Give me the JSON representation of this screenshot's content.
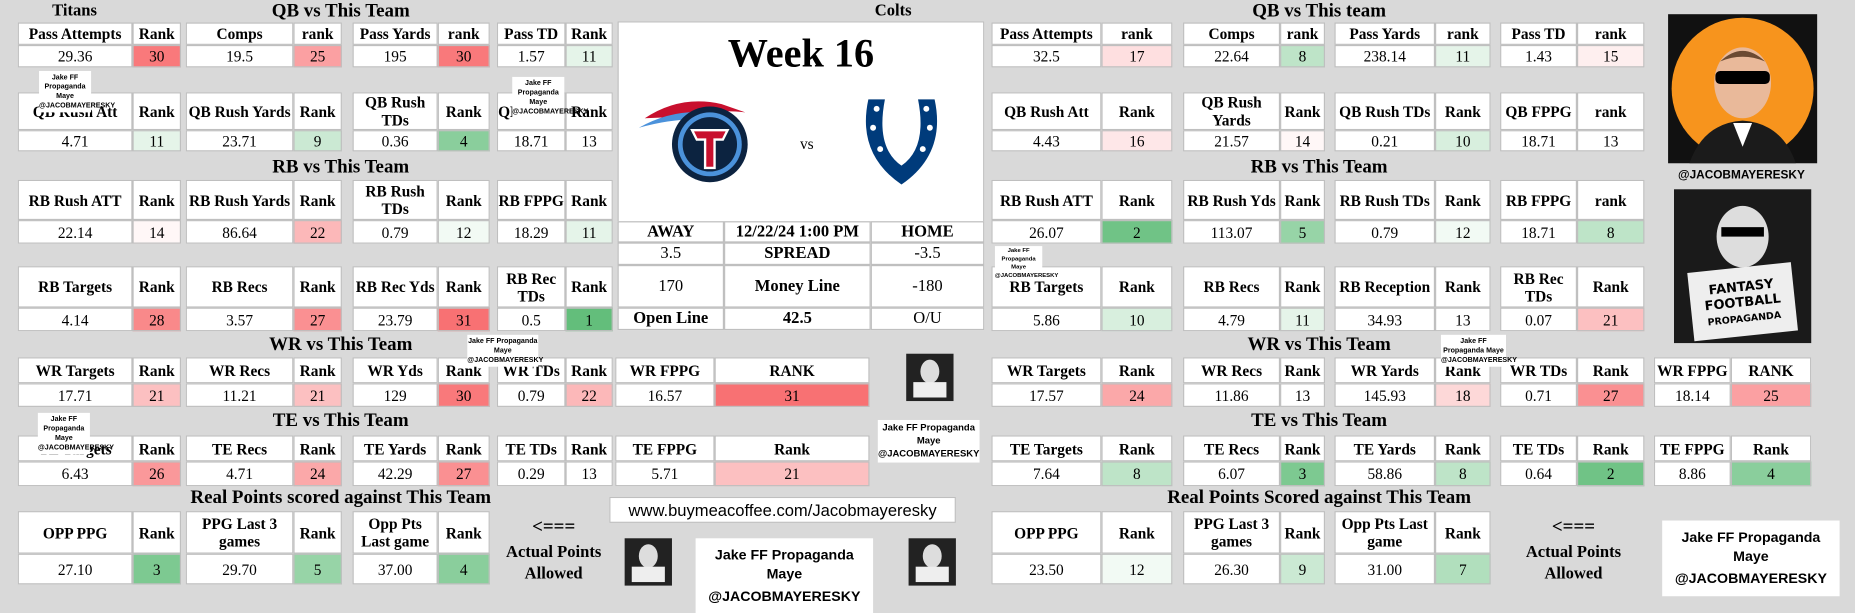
{
  "week": "Week 16",
  "home_team": "Colts",
  "matchup_vs": "vs",
  "game_table": [
    [
      "AWAY",
      "12/22/24 1:00 PM",
      "HOME"
    ],
    [
      "3.5",
      "SPREAD",
      "-3.5"
    ],
    [
      "170",
      "Money Line",
      "-180"
    ],
    [
      "Open Line",
      "42.5",
      "O/U"
    ]
  ],
  "website": "www.buymeacoffee.com/Jacobmayeresky",
  "watermark": {
    "name": "Jake FF Propaganda Maye",
    "handle": "@JACOBMAYERESKY"
  },
  "sides": [
    {
      "team": "Titans",
      "note": {
        "arrow": "<===",
        "text": "Actual Points Allowed"
      },
      "rows": [
        {
          "title": "QB vs This Team",
          "cells": [
            {
              "label": "Pass Attempts",
              "value": 29.36,
              "rank_label": "Rank",
              "rank": 30
            },
            {
              "label": "Comps",
              "value": 19.5,
              "rank_label": "rank",
              "rank": 25
            },
            {
              "label": "Pass Yards",
              "value": 195,
              "rank_label": "rank",
              "rank": 30
            },
            {
              "label": "Pass TD",
              "value": 1.57,
              "rank_label": "Rank",
              "rank": 11
            }
          ]
        },
        {
          "cells": [
            {
              "label": "QB Rush Att",
              "value": 4.71,
              "rank_label": "Rank",
              "rank": 11
            },
            {
              "label": "QB Rush Yards",
              "value": 23.71,
              "rank_label": "Rank",
              "rank": 9
            },
            {
              "label": "QB Rush TDs",
              "value": 0.36,
              "rank_label": "Rank",
              "rank": 4
            },
            {
              "label": "QB FPPG",
              "value": 18.71,
              "rank_label": "Rank",
              "rank": 13
            }
          ]
        },
        {
          "title": "RB vs This Team",
          "cells": [
            {
              "label": "RB Rush ATT",
              "value": 22.14,
              "rank_label": "Rank",
              "rank": 14
            },
            {
              "label": "RB Rush Yards",
              "value": 86.64,
              "rank_label": "Rank",
              "rank": 22
            },
            {
              "label": "RB Rush TDs",
              "value": 0.79,
              "rank_label": "Rank",
              "rank": 12
            },
            {
              "label": "RB FPPG",
              "value": 18.29,
              "rank_label": "Rank",
              "rank": 11
            }
          ]
        },
        {
          "cells": [
            {
              "label": "RB Targets",
              "value": 4.14,
              "rank_label": "Rank",
              "rank": 28
            },
            {
              "label": "RB Recs",
              "value": 3.57,
              "rank_label": "Rank",
              "rank": 27
            },
            {
              "label": "RB Rec Yds",
              "value": 23.79,
              "rank_label": "Rank",
              "rank": 31
            },
            {
              "label": "RB Rec TDs",
              "value": 0.5,
              "rank_label": "Rank",
              "rank": 1
            }
          ]
        },
        {
          "title": "WR vs This Team",
          "cells": [
            {
              "label": "WR Targets",
              "value": 17.71,
              "rank_label": "Rank",
              "rank": 21
            },
            {
              "label": "WR Recs",
              "value": 11.21,
              "rank_label": "Rank",
              "rank": 21
            },
            {
              "label": "WR Yds",
              "value": 129,
              "rank_label": "Rank",
              "rank": 30
            },
            {
              "label": "WR TDs",
              "value": 0.79,
              "rank_label": "Rank",
              "rank": 22
            },
            {
              "label": "WR FPPG",
              "value": 16.57,
              "rank_label": "RANK",
              "rank": 31
            }
          ]
        },
        {
          "title": "TE vs This Team",
          "cells": [
            {
              "label": "TE Targets",
              "value": 6.43,
              "rank_label": "Rank",
              "rank": 26
            },
            {
              "label": "TE Recs",
              "value": 4.71,
              "rank_label": "Rank",
              "rank": 24
            },
            {
              "label": "TE Yards",
              "value": 42.29,
              "rank_label": "Rank",
              "rank": 27
            },
            {
              "label": "TE TDs",
              "value": 0.29,
              "rank_label": "Rank",
              "rank": 13
            },
            {
              "label": "TE FPPG",
              "value": 5.71,
              "rank_label": "Rank",
              "rank": 21
            }
          ]
        },
        {
          "title": "Real Points scored against This Team",
          "cells": [
            {
              "label": "OPP PPG",
              "value": "27.10",
              "rank_label": "Rank",
              "rank": 3
            },
            {
              "label": "PPG Last 3 games",
              "value": "29.70",
              "rank_label": "Rank",
              "rank": 5
            },
            {
              "label": "Opp Pts Last game",
              "value": "37.00",
              "rank_label": "Rank",
              "rank": 4
            }
          ]
        }
      ]
    },
    {
      "note": {
        "arrow": "<===",
        "text": "Actual Points Allowed"
      },
      "rows": [
        {
          "title": "QB vs This team",
          "cells": [
            {
              "label": "Pass Attempts",
              "value": 32.5,
              "rank_label": "rank",
              "rank": 17
            },
            {
              "label": "Comps",
              "value": 22.64,
              "rank_label": "rank",
              "rank": 8
            },
            {
              "label": "Pass Yards",
              "value": 238.14,
              "rank_label": "rank",
              "rank": 11
            },
            {
              "label": "Pass TD",
              "value": 1.43,
              "rank_label": "rank",
              "rank": 15
            }
          ]
        },
        {
          "cells": [
            {
              "label": "QB Rush Att",
              "value": 4.43,
              "rank_label": "Rank",
              "rank": 16
            },
            {
              "label": "QB Rush Yards",
              "value": 21.57,
              "rank_label": "Rank",
              "rank": 14
            },
            {
              "label": "QB Rush TDs",
              "value": 0.21,
              "rank_label": "Rank",
              "rank": 10
            },
            {
              "label": "QB FPPG",
              "value": 18.71,
              "rank_label": "rank",
              "rank": 13
            }
          ]
        },
        {
          "title": "RB vs This Team",
          "cells": [
            {
              "label": "RB Rush ATT",
              "value": 26.07,
              "rank_label": "Rank",
              "rank": 2
            },
            {
              "label": "RB Rush Yds",
              "value": 113.07,
              "rank_label": "Rank",
              "rank": 5
            },
            {
              "label": "RB Rush TDs",
              "value": 0.79,
              "rank_label": "Rank",
              "rank": 12
            },
            {
              "label": "RB FPPG",
              "value": 18.71,
              "rank_label": "rank",
              "rank": 8
            }
          ]
        },
        {
          "cells": [
            {
              "label": "RB Targets",
              "value": 5.86,
              "rank_label": "Rank",
              "rank": 10
            },
            {
              "label": "RB Recs",
              "value": 4.79,
              "rank_label": "Rank",
              "rank": 11
            },
            {
              "label": "RB Reception",
              "value": 34.93,
              "rank_label": "Rank",
              "rank": 13
            },
            {
              "label": "RB Rec TDs",
              "value": 0.07,
              "rank_label": "Rank",
              "rank": 21
            }
          ]
        },
        {
          "title": "WR vs This Team",
          "cells": [
            {
              "label": "WR Targets",
              "value": 17.57,
              "rank_label": "Rank",
              "rank": 24
            },
            {
              "label": "WR Recs",
              "value": 11.86,
              "rank_label": "Rank",
              "rank": 13
            },
            {
              "label": "WR Yards",
              "value": 145.93,
              "rank_label": "Rank",
              "rank": 18
            },
            {
              "label": "WR TDs",
              "value": 0.71,
              "rank_label": "Rank",
              "rank": 27
            },
            {
              "label": "WR FPPG",
              "value": 18.14,
              "rank_label": "RANK",
              "rank": 25
            }
          ]
        },
        {
          "title": "TE vs This Team",
          "cells": [
            {
              "label": "TE Targets",
              "value": 7.64,
              "rank_label": "Rank",
              "rank": 8
            },
            {
              "label": "TE Recs",
              "value": 6.07,
              "rank_label": "Rank",
              "rank": 3
            },
            {
              "label": "TE Yards",
              "value": 58.86,
              "rank_label": "Rank",
              "rank": 8
            },
            {
              "label": "TE TDs",
              "value": 0.64,
              "rank_label": "Rank",
              "rank": 2
            },
            {
              "label": "TE FPPG",
              "value": 8.86,
              "rank_label": "Rank",
              "rank": 4
            }
          ]
        },
        {
          "title": "Real Points Scored against This Team",
          "cells": [
            {
              "label": "OPP PPG",
              "value": "23.50",
              "rank_label": "Rank",
              "rank": 12
            },
            {
              "label": "PPG Last 3 games",
              "value": "26.30",
              "rank_label": "Rank",
              "rank": 9
            },
            {
              "label": "Opp Pts Last game",
              "value": "31.00",
              "rank_label": "Rank",
              "rank": 7
            }
          ]
        }
      ]
    }
  ]
}
